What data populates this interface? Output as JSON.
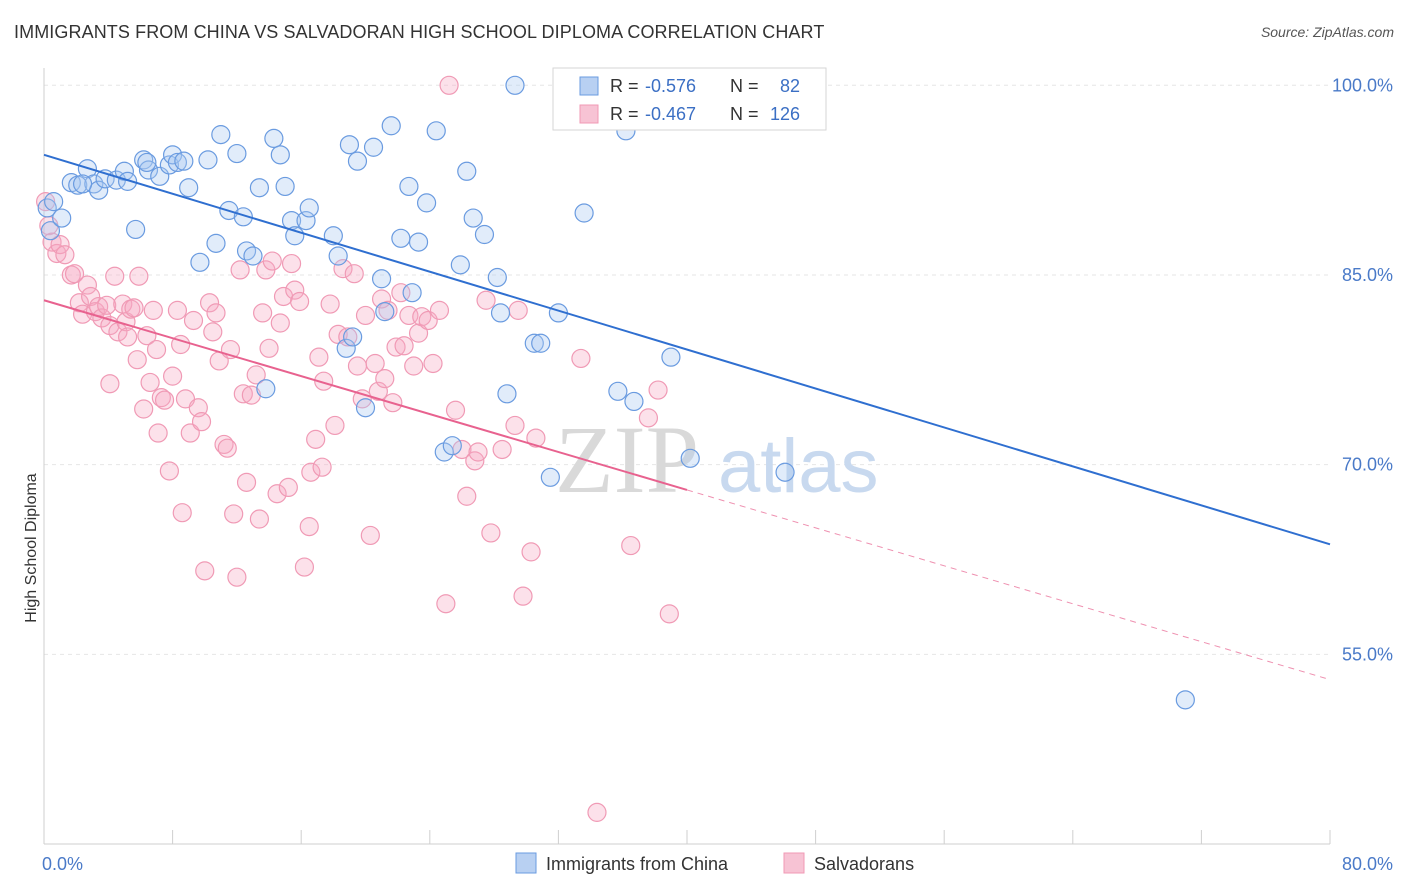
{
  "title": "IMMIGRANTS FROM CHINA VS SALVADORAN HIGH SCHOOL DIPLOMA CORRELATION CHART",
  "source": "Source: ZipAtlas.com",
  "watermark": {
    "zip": "ZIP",
    "atlas": "atlas"
  },
  "chart_data": {
    "type": "scatter",
    "xlabel": "",
    "ylabel": "High School Diploma",
    "xlim": [
      0,
      80
    ],
    "ylim": [
      40,
      102
    ],
    "x_tick_labels": [
      {
        "value": 0,
        "label": "0.0%"
      },
      {
        "value": 80,
        "label": "80.0%"
      }
    ],
    "y_tick_labels": [
      {
        "value": 100,
        "label": "100.0%"
      },
      {
        "value": 85,
        "label": "85.0%"
      },
      {
        "value": 70,
        "label": "70.0%"
      },
      {
        "value": 55,
        "label": "55.0%"
      }
    ],
    "legend": {
      "placement": "top-center",
      "entries": [
        {
          "r_label": "R =",
          "r_value": "-0.576",
          "n_label": "N =",
          "n_value": "82",
          "color": "#6a9be0"
        },
        {
          "r_label": "R =",
          "r_value": "-0.467",
          "n_label": "N =",
          "n_value": "126",
          "color": "#f09ab5"
        }
      ]
    },
    "series": [
      {
        "name": "Immigrants from China",
        "color": "#6a9be0",
        "trend": {
          "x0": 0,
          "y0": 94.5,
          "x1": 80,
          "y1": 63.7,
          "dashed_from": null
        },
        "points": [
          [
            0.2,
            90.3
          ],
          [
            0.4,
            88.5
          ],
          [
            0.6,
            90.8
          ],
          [
            1.1,
            89.5
          ],
          [
            1.7,
            92.3
          ],
          [
            2.1,
            92.1
          ],
          [
            2.7,
            93.4
          ],
          [
            3.1,
            92.2
          ],
          [
            3.4,
            91.7
          ],
          [
            3.8,
            92.6
          ],
          [
            4.5,
            92.5
          ],
          [
            5.0,
            93.2
          ],
          [
            5.2,
            92.4
          ],
          [
            5.7,
            88.6
          ],
          [
            6.2,
            94.1
          ],
          [
            6.5,
            93.3
          ],
          [
            7.2,
            92.8
          ],
          [
            7.8,
            93.7
          ],
          [
            8.0,
            94.5
          ],
          [
            8.3,
            93.9
          ],
          [
            8.7,
            94.0
          ],
          [
            9.0,
            91.9
          ],
          [
            9.7,
            86.0
          ],
          [
            10.2,
            94.1
          ],
          [
            10.7,
            87.5
          ],
          [
            11.0,
            96.1
          ],
          [
            11.5,
            90.1
          ],
          [
            12.0,
            94.6
          ],
          [
            12.4,
            89.6
          ],
          [
            12.6,
            86.9
          ],
          [
            13.0,
            86.5
          ],
          [
            13.4,
            91.9
          ],
          [
            13.8,
            76.0
          ],
          [
            14.3,
            95.8
          ],
          [
            14.7,
            94.5
          ],
          [
            15.0,
            92.0
          ],
          [
            15.4,
            89.3
          ],
          [
            15.6,
            88.1
          ],
          [
            16.3,
            89.3
          ],
          [
            16.5,
            90.3
          ],
          [
            18.0,
            88.1
          ],
          [
            18.3,
            86.5
          ],
          [
            18.8,
            79.2
          ],
          [
            19.2,
            80.1
          ],
          [
            19.0,
            95.3
          ],
          [
            19.5,
            94.0
          ],
          [
            20.0,
            74.5
          ],
          [
            20.5,
            95.1
          ],
          [
            21.0,
            84.7
          ],
          [
            21.2,
            82.1
          ],
          [
            21.6,
            96.8
          ],
          [
            22.2,
            87.9
          ],
          [
            22.7,
            92.0
          ],
          [
            22.9,
            83.6
          ],
          [
            23.3,
            87.6
          ],
          [
            23.8,
            90.7
          ],
          [
            24.4,
            96.4
          ],
          [
            24.9,
            71.0
          ],
          [
            25.4,
            71.5
          ],
          [
            25.9,
            85.8
          ],
          [
            26.3,
            93.2
          ],
          [
            26.7,
            89.5
          ],
          [
            27.4,
            88.2
          ],
          [
            28.2,
            84.8
          ],
          [
            28.4,
            82.0
          ],
          [
            28.8,
            75.6
          ],
          [
            29.3,
            100.0
          ],
          [
            30.5,
            79.6
          ],
          [
            30.9,
            79.6
          ],
          [
            31.5,
            69.0
          ],
          [
            32.0,
            82.0
          ],
          [
            32.8,
            100.0
          ],
          [
            33.6,
            89.9
          ],
          [
            35.7,
            75.8
          ],
          [
            36.2,
            96.4
          ],
          [
            36.7,
            75.0
          ],
          [
            39.0,
            78.5
          ],
          [
            40.2,
            70.5
          ],
          [
            46.1,
            69.4
          ],
          [
            71.0,
            51.4
          ],
          [
            2.4,
            92.2
          ],
          [
            6.4,
            93.9
          ]
        ]
      },
      {
        "name": "Salvadorans",
        "color": "#f09ab5",
        "trend": {
          "x0": 0,
          "y0": 83.0,
          "x1": 80,
          "y1": 53.0,
          "dashed_from": 40
        },
        "points": [
          [
            0.1,
            90.8
          ],
          [
            0.3,
            88.9
          ],
          [
            0.5,
            87.6
          ],
          [
            0.8,
            86.7
          ],
          [
            1.0,
            87.4
          ],
          [
            1.3,
            86.6
          ],
          [
            1.7,
            85.0
          ],
          [
            1.9,
            85.1
          ],
          [
            2.2,
            82.8
          ],
          [
            2.4,
            81.9
          ],
          [
            2.7,
            84.2
          ],
          [
            2.9,
            83.3
          ],
          [
            3.2,
            82.1
          ],
          [
            3.4,
            82.5
          ],
          [
            3.6,
            81.6
          ],
          [
            3.9,
            82.6
          ],
          [
            4.1,
            81.0
          ],
          [
            4.1,
            76.4
          ],
          [
            4.4,
            84.9
          ],
          [
            4.6,
            80.5
          ],
          [
            4.9,
            82.7
          ],
          [
            5.1,
            81.3
          ],
          [
            5.2,
            80.1
          ],
          [
            5.4,
            82.3
          ],
          [
            5.6,
            82.4
          ],
          [
            5.8,
            78.3
          ],
          [
            5.9,
            84.9
          ],
          [
            6.2,
            74.4
          ],
          [
            6.4,
            80.2
          ],
          [
            6.6,
            76.5
          ],
          [
            6.8,
            82.2
          ],
          [
            7.0,
            79.1
          ],
          [
            7.1,
            72.5
          ],
          [
            7.3,
            75.3
          ],
          [
            7.5,
            75.1
          ],
          [
            7.8,
            69.5
          ],
          [
            8.0,
            77.0
          ],
          [
            8.3,
            82.2
          ],
          [
            8.5,
            79.5
          ],
          [
            8.6,
            66.2
          ],
          [
            8.8,
            75.2
          ],
          [
            9.1,
            72.5
          ],
          [
            9.3,
            81.4
          ],
          [
            9.6,
            74.5
          ],
          [
            9.8,
            73.4
          ],
          [
            10.0,
            61.6
          ],
          [
            10.3,
            82.8
          ],
          [
            10.5,
            80.5
          ],
          [
            10.7,
            82.0
          ],
          [
            10.9,
            78.2
          ],
          [
            11.2,
            71.6
          ],
          [
            11.4,
            71.3
          ],
          [
            11.6,
            79.1
          ],
          [
            11.8,
            66.1
          ],
          [
            12.0,
            61.1
          ],
          [
            12.2,
            85.4
          ],
          [
            12.4,
            75.6
          ],
          [
            12.6,
            68.6
          ],
          [
            12.9,
            75.5
          ],
          [
            13.2,
            77.1
          ],
          [
            13.4,
            65.7
          ],
          [
            13.6,
            82.0
          ],
          [
            13.8,
            85.4
          ],
          [
            14.0,
            79.2
          ],
          [
            14.2,
            86.1
          ],
          [
            14.5,
            67.7
          ],
          [
            14.7,
            81.2
          ],
          [
            14.9,
            83.3
          ],
          [
            15.2,
            68.2
          ],
          [
            15.4,
            85.9
          ],
          [
            15.6,
            83.8
          ],
          [
            15.9,
            82.9
          ],
          [
            16.2,
            61.9
          ],
          [
            16.5,
            65.1
          ],
          [
            16.6,
            69.4
          ],
          [
            16.9,
            72.0
          ],
          [
            17.1,
            78.5
          ],
          [
            17.3,
            69.8
          ],
          [
            17.4,
            76.6
          ],
          [
            17.8,
            82.7
          ],
          [
            18.1,
            73.1
          ],
          [
            18.3,
            80.3
          ],
          [
            18.6,
            85.5
          ],
          [
            18.9,
            80.1
          ],
          [
            19.3,
            85.1
          ],
          [
            19.5,
            77.8
          ],
          [
            19.8,
            75.2
          ],
          [
            20.0,
            81.8
          ],
          [
            20.3,
            64.4
          ],
          [
            20.6,
            78.0
          ],
          [
            20.8,
            75.8
          ],
          [
            21.0,
            83.1
          ],
          [
            21.2,
            76.8
          ],
          [
            21.4,
            82.2
          ],
          [
            21.7,
            74.9
          ],
          [
            21.9,
            79.3
          ],
          [
            22.2,
            83.6
          ],
          [
            22.4,
            79.4
          ],
          [
            22.7,
            81.8
          ],
          [
            23.0,
            77.8
          ],
          [
            23.3,
            80.4
          ],
          [
            23.5,
            81.7
          ],
          [
            23.9,
            81.4
          ],
          [
            24.2,
            78.0
          ],
          [
            24.6,
            82.2
          ],
          [
            25.0,
            59.0
          ],
          [
            25.6,
            74.3
          ],
          [
            26.0,
            71.2
          ],
          [
            26.3,
            67.5
          ],
          [
            26.8,
            70.3
          ],
          [
            27.0,
            71.0
          ],
          [
            27.5,
            83.0
          ],
          [
            27.8,
            64.6
          ],
          [
            28.5,
            71.2
          ],
          [
            29.3,
            73.1
          ],
          [
            29.8,
            59.6
          ],
          [
            30.6,
            72.1
          ],
          [
            30.3,
            63.1
          ],
          [
            33.4,
            78.4
          ],
          [
            34.4,
            42.5
          ],
          [
            36.5,
            63.6
          ],
          [
            37.6,
            73.7
          ],
          [
            38.2,
            75.9
          ],
          [
            38.9,
            58.2
          ],
          [
            25.2,
            100.0
          ],
          [
            29.5,
            82.2
          ]
        ]
      }
    ]
  }
}
